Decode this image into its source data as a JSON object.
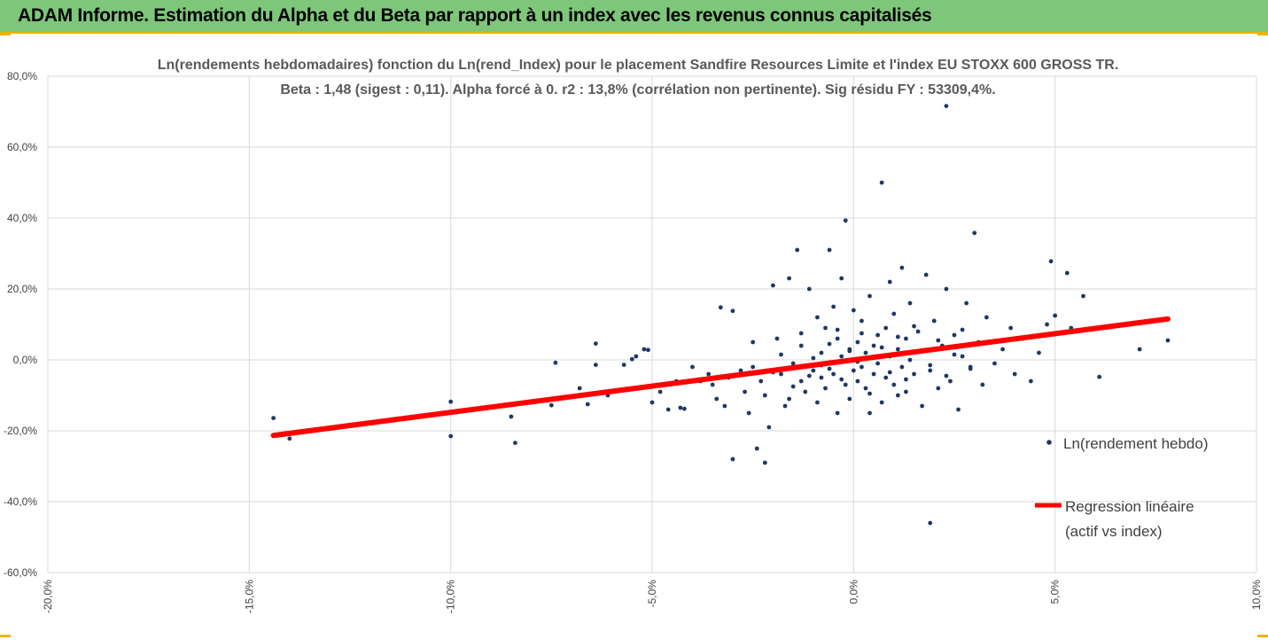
{
  "banner": {
    "title": "ADAM Informe. Estimation du Alpha et du Beta par rapport à un index avec les revenus connus capitalisés"
  },
  "colors": {
    "banner": "#7ec77a",
    "accent": "#f0b400",
    "points": "#1f3864",
    "regression": "#ff0000",
    "grid": "#d9d9d9",
    "text": "#595959"
  },
  "chart_data": {
    "type": "scatter",
    "title": "Ln(rendements hebdomadaires) fonction du Ln(rend_Index) pour le placement Sandfire Resources Limite et l'index EU STOXX 600 GROSS TR.",
    "subtitle": "Beta : 1,48 (sigest : 0,11). Alpha forcé à 0. r2 : 13,8% (corrélation non pertinente). Sig résidu FY : 53309,4%.",
    "x_ticks": [
      "-20,0%",
      "-15,0%",
      "-10,0%",
      "-5,0%",
      "0,0%",
      "5,0%",
      "10,0%"
    ],
    "y_ticks": [
      "80,0%",
      "60,0%",
      "40,0%",
      "20,0%",
      "0,0%",
      "-20,0%",
      "-40,0%",
      "-60,0%"
    ],
    "xlim": [
      -0.2,
      0.1
    ],
    "ylim": [
      -0.6,
      0.8
    ],
    "grid": true,
    "legend_position": "right",
    "series": [
      {
        "name": "Ln(rendement hebdo)",
        "kind": "scatter",
        "points": [
          [
            -0.144,
            -0.164
          ],
          [
            -0.14,
            -0.222
          ],
          [
            -0.1,
            -0.215
          ],
          [
            -0.1,
            -0.118
          ],
          [
            -0.085,
            -0.16
          ],
          [
            -0.084,
            -0.234
          ],
          [
            -0.075,
            -0.128
          ],
          [
            -0.074,
            -0.008
          ],
          [
            -0.068,
            -0.08
          ],
          [
            -0.066,
            -0.125
          ],
          [
            -0.064,
            0.046
          ],
          [
            -0.064,
            -0.014
          ],
          [
            -0.061,
            -0.1
          ],
          [
            -0.057,
            -0.014
          ],
          [
            -0.055,
            0.002
          ],
          [
            -0.054,
            0.01
          ],
          [
            -0.052,
            0.03
          ],
          [
            -0.051,
            0.028
          ],
          [
            -0.05,
            -0.12
          ],
          [
            -0.048,
            -0.09
          ],
          [
            -0.046,
            -0.14
          ],
          [
            -0.044,
            -0.06
          ],
          [
            -0.043,
            -0.135
          ],
          [
            -0.042,
            -0.138
          ],
          [
            -0.04,
            -0.02
          ],
          [
            -0.038,
            -0.06
          ],
          [
            -0.036,
            -0.04
          ],
          [
            -0.035,
            -0.07
          ],
          [
            -0.034,
            -0.11
          ],
          [
            -0.033,
            0.148
          ],
          [
            -0.032,
            -0.13
          ],
          [
            -0.031,
            -0.05
          ],
          [
            -0.03,
            0.138
          ],
          [
            -0.03,
            -0.28
          ],
          [
            -0.028,
            -0.03
          ],
          [
            -0.027,
            -0.09
          ],
          [
            -0.026,
            -0.15
          ],
          [
            -0.025,
            0.05
          ],
          [
            -0.025,
            -0.02
          ],
          [
            -0.024,
            -0.25
          ],
          [
            -0.023,
            -0.06
          ],
          [
            -0.022,
            -0.29
          ],
          [
            -0.022,
            -0.1
          ],
          [
            -0.021,
            -0.19
          ],
          [
            -0.02,
            0.21
          ],
          [
            -0.019,
            0.06
          ],
          [
            -0.018,
            -0.04
          ],
          [
            -0.017,
            -0.13
          ],
          [
            -0.016,
            0.23
          ],
          [
            -0.015,
            -0.01
          ],
          [
            -0.014,
            0.31
          ],
          [
            -0.013,
            -0.06
          ],
          [
            -0.013,
            0.04
          ],
          [
            -0.012,
            -0.09
          ],
          [
            -0.011,
            0.2
          ],
          [
            -0.01,
            -0.03
          ],
          [
            -0.009,
            0.12
          ],
          [
            -0.009,
            -0.12
          ],
          [
            -0.008,
            -0.05
          ],
          [
            -0.008,
            0.02
          ],
          [
            -0.007,
            0.09
          ],
          [
            -0.007,
            -0.08
          ],
          [
            -0.006,
            0.31
          ],
          [
            -0.006,
            -0.01
          ],
          [
            -0.005,
            0.15
          ],
          [
            -0.005,
            -0.04
          ],
          [
            -0.004,
            0.06
          ],
          [
            -0.004,
            -0.15
          ],
          [
            -0.003,
            0.23
          ],
          [
            -0.003,
            0.01
          ],
          [
            -0.002,
            -0.07
          ],
          [
            -0.002,
            0.393
          ],
          [
            -0.001,
            0.03
          ],
          [
            -0.001,
            -0.11
          ],
          [
            0.0,
            0.0
          ],
          [
            0.0,
            -0.03
          ],
          [
            0.001,
            0.05
          ],
          [
            0.001,
            -0.06
          ],
          [
            0.002,
            0.11
          ],
          [
            0.002,
            -0.02
          ],
          [
            0.003,
            -0.08
          ],
          [
            0.003,
            0.02
          ],
          [
            0.004,
            0.18
          ],
          [
            0.004,
            -0.15
          ],
          [
            0.005,
            0.04
          ],
          [
            0.005,
            -0.04
          ],
          [
            0.006,
            0.07
          ],
          [
            0.006,
            -0.01
          ],
          [
            0.007,
            0.5
          ],
          [
            0.007,
            -0.12
          ],
          [
            0.008,
            0.09
          ],
          [
            0.008,
            -0.05
          ],
          [
            0.009,
            0.22
          ],
          [
            0.009,
            0.01
          ],
          [
            0.01,
            -0.07
          ],
          [
            0.01,
            0.13
          ],
          [
            0.011,
            0.03
          ],
          [
            0.011,
            -0.1
          ],
          [
            0.012,
            0.26
          ],
          [
            0.012,
            -0.02
          ],
          [
            0.013,
            0.06
          ],
          [
            0.013,
            -0.09
          ],
          [
            0.014,
            0.16
          ],
          [
            0.014,
            0.0
          ],
          [
            0.015,
            -0.04
          ],
          [
            0.016,
            0.08
          ],
          [
            0.017,
            -0.13
          ],
          [
            0.018,
            0.24
          ],
          [
            0.019,
            -0.03
          ],
          [
            0.019,
            -0.46
          ],
          [
            0.02,
            0.11
          ],
          [
            0.021,
            -0.08
          ],
          [
            0.022,
            0.04
          ],
          [
            0.023,
            0.2
          ],
          [
            0.024,
            -0.06
          ],
          [
            0.025,
            0.07
          ],
          [
            0.026,
            -0.14
          ],
          [
            0.027,
            0.01
          ],
          [
            0.028,
            0.16
          ],
          [
            0.029,
            -0.02
          ],
          [
            0.03,
            0.358
          ],
          [
            0.031,
            0.05
          ],
          [
            0.032,
            -0.07
          ],
          [
            0.033,
            0.12
          ],
          [
            0.035,
            -0.01
          ],
          [
            0.037,
            0.03
          ],
          [
            0.039,
            0.09
          ],
          [
            0.04,
            -0.04
          ],
          [
            0.042,
            0.06
          ],
          [
            0.044,
            -0.06
          ],
          [
            0.046,
            0.02
          ],
          [
            0.048,
            0.1
          ],
          [
            0.049,
            0.278
          ],
          [
            0.05,
            0.125
          ],
          [
            0.053,
            0.245
          ],
          [
            0.054,
            0.09
          ],
          [
            0.057,
            0.18
          ],
          [
            0.061,
            -0.048
          ],
          [
            0.071,
            0.03
          ],
          [
            0.078,
            0.055
          ],
          [
            0.023,
            0.716
          ],
          [
            -0.016,
            -0.11
          ],
          [
            -0.011,
            -0.045
          ],
          [
            -0.006,
            -0.025
          ],
          [
            -0.004,
            0.085
          ],
          [
            0.0,
            0.14
          ],
          [
            0.002,
            0.075
          ],
          [
            0.004,
            -0.095
          ],
          [
            0.007,
            0.035
          ],
          [
            0.009,
            -0.035
          ],
          [
            0.011,
            0.065
          ],
          [
            0.013,
            -0.055
          ],
          [
            0.015,
            0.095
          ],
          [
            0.017,
            0.025
          ],
          [
            0.019,
            -0.015
          ],
          [
            0.021,
            0.055
          ],
          [
            0.023,
            -0.045
          ],
          [
            0.025,
            0.015
          ],
          [
            0.027,
            0.085
          ],
          [
            0.029,
            -0.025
          ],
          [
            -0.02,
            -0.035
          ],
          [
            -0.018,
            0.015
          ],
          [
            -0.015,
            -0.075
          ],
          [
            -0.013,
            0.075
          ],
          [
            -0.01,
            0.005
          ],
          [
            -0.008,
            -0.015
          ],
          [
            -0.006,
            0.045
          ],
          [
            -0.003,
            -0.055
          ],
          [
            -0.001,
            0.025
          ],
          [
            0.001,
            -0.005
          ]
        ]
      },
      {
        "name": "Regression linéaire (actif vs index)",
        "kind": "line",
        "beta": 1.48,
        "x_range": [
          -0.144,
          0.078
        ]
      }
    ]
  }
}
